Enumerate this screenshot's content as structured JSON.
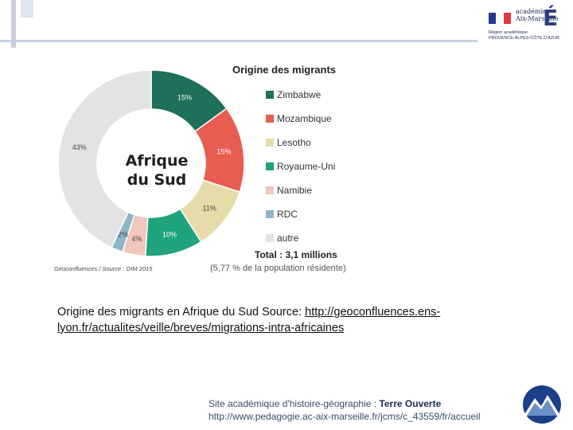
{
  "header": {
    "logo": {
      "line1": "académie",
      "line2": "Aix-Marseille",
      "letter": "É",
      "region_line1": "Région académique",
      "region_line2": "PROVENCE-ALPES-CÔTE D'AZUR",
      "flag_colors": [
        "#1f3a93",
        "#ffffff",
        "#e03a3e"
      ]
    }
  },
  "chart_data": {
    "type": "pie",
    "style": "donut",
    "title": "Origine des migrants",
    "center_label_line1": "Afrique",
    "center_label_line2": "du Sud",
    "slices": [
      {
        "name": "Zimbabwe",
        "value": 15,
        "label": "15%",
        "color": "#1e6f5c"
      },
      {
        "name": "Mozambique",
        "value": 15,
        "label": "15%",
        "color": "#e85d52"
      },
      {
        "name": "Lesotho",
        "value": 11,
        "label": "11%",
        "color": "#e6dcaa"
      },
      {
        "name": "Royaume-Uni",
        "value": 10,
        "label": "10%",
        "color": "#1fa37f"
      },
      {
        "name": "Namibie",
        "value": 4,
        "label": "4%",
        "color": "#f2c6bd"
      },
      {
        "name": "RDC",
        "value": 2,
        "label": "2%",
        "color": "#8fb6c6"
      },
      {
        "name": "autre",
        "value": 43,
        "label": "43%",
        "color": "#e3e3e3"
      }
    ],
    "legend_placement": "right",
    "total": "Total : 3,1 millions",
    "population_note": "(5,77 % de la population résidente)",
    "source": "Géoconfluences / Source : OIM 2015"
  },
  "caption": {
    "text": "Origine des migrants en Afrique du Sud Source: ",
    "link": "http://geoconfluences.ens-lyon.fr/actualites/veille/breves/migrations-intra-africaines"
  },
  "footer": {
    "line1_prefix": "Site académique d'histoire-géographie : ",
    "line1_name": "Terre Ouverte",
    "line2": "http://www.pedagogie.ac-aix-marseille.fr/jcms/c_43559/fr/accueil"
  }
}
